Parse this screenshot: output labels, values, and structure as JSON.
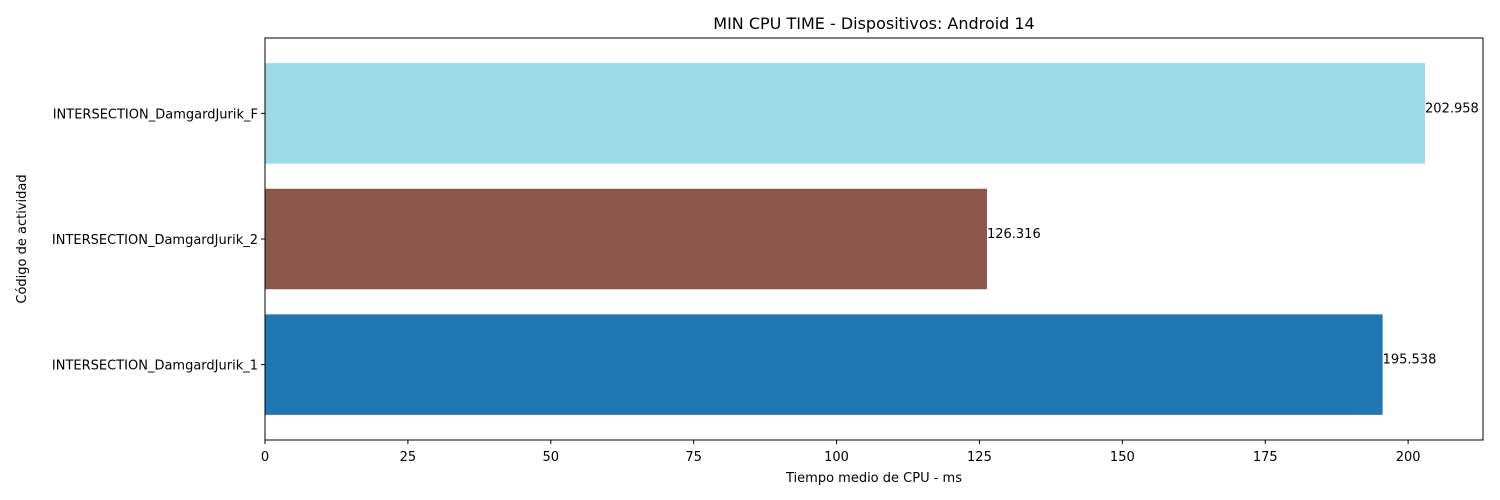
{
  "chart_data": {
    "type": "bar",
    "orientation": "horizontal",
    "title": "MIN CPU TIME - Dispositivos: Android 14",
    "xlabel": "Tiempo medio de CPU - ms",
    "ylabel": "Código de actividad",
    "categories": [
      "INTERSECTION_DamgardJurik_1",
      "INTERSECTION_DamgardJurik_2",
      "INTERSECTION_DamgardJurik_F"
    ],
    "values": [
      195.538,
      126.316,
      202.958
    ],
    "value_labels": [
      "195.538",
      "126.316",
      "202.958"
    ],
    "colors": [
      "#1f77b4",
      "#8c564b",
      "#9edae5"
    ],
    "xlim": [
      0,
      213.1
    ],
    "xticks": [
      0,
      25,
      50,
      75,
      100,
      125,
      150,
      175,
      200
    ],
    "grid": false
  }
}
